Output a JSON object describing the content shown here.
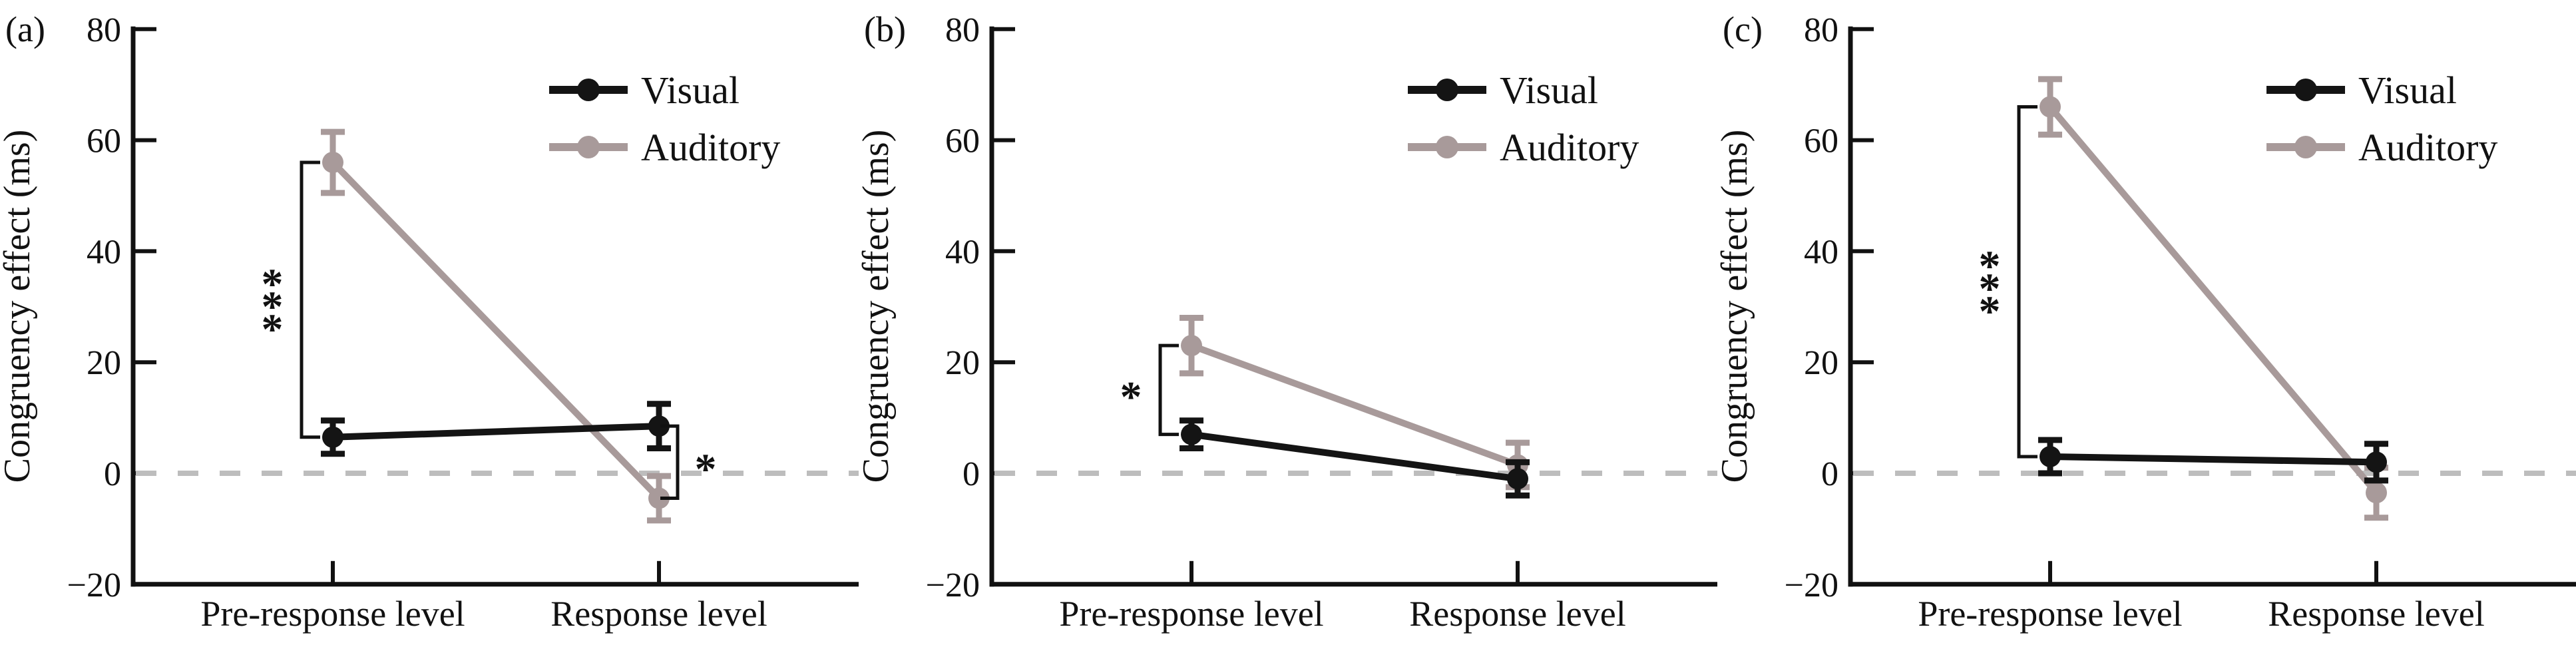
{
  "figure_title": "",
  "colors": {
    "visual": "#141414",
    "auditory": "#a89a9a",
    "zero_line": "#bdbdbd",
    "axis": "#111111",
    "background": "#ffffff"
  },
  "legend": {
    "items": [
      {
        "label": "Visual",
        "marker": "filled-circle-on-line",
        "color_key": "visual"
      },
      {
        "label": "Auditory",
        "marker": "filled-circle-on-line",
        "color_key": "auditory"
      }
    ],
    "position": "upper right"
  },
  "y_axis": {
    "title": "Congruency effect (ms)",
    "ticks": [
      80,
      60,
      40,
      20,
      0,
      -20
    ],
    "range": [
      -20,
      80
    ]
  },
  "x_axis": {
    "categories": [
      "Pre-response level",
      "Response level"
    ]
  },
  "chart_data": [
    {
      "type": "line",
      "panel_label": "(a)",
      "categories": [
        "Pre-response level",
        "Response level"
      ],
      "series": [
        {
          "name": "Visual",
          "values": [
            6.5,
            8.5
          ],
          "errors": [
            3,
            4
          ],
          "color": "#141414"
        },
        {
          "name": "Auditory",
          "values": [
            56,
            -4.5
          ],
          "errors": [
            5.5,
            4
          ],
          "color": "#a89a9a"
        }
      ],
      "ylabel": "Congruency effect (ms)",
      "ylim": [
        -20,
        80
      ],
      "yticks": [
        80,
        60,
        40,
        20,
        0,
        -20
      ],
      "zero_reference_line": true,
      "grid": false,
      "legend_position": "upper right",
      "significance": [
        {
          "stars": "***",
          "category": "Pre-response level",
          "between": [
            "Auditory",
            "Visual"
          ],
          "bracket_side": "open-right",
          "stars_side": "left"
        },
        {
          "stars": "*",
          "category": "Response level",
          "between": [
            "Visual",
            "Auditory"
          ],
          "bracket_side": "open-left",
          "stars_side": "right"
        }
      ]
    },
    {
      "type": "line",
      "panel_label": "(b)",
      "categories": [
        "Pre-response level",
        "Response level"
      ],
      "series": [
        {
          "name": "Visual",
          "values": [
            7,
            -1
          ],
          "errors": [
            2.5,
            3
          ],
          "color": "#141414"
        },
        {
          "name": "Auditory",
          "values": [
            23,
            1.5
          ],
          "errors": [
            5,
            4
          ],
          "color": "#a89a9a"
        }
      ],
      "ylabel": "Congruency effect (ms)",
      "ylim": [
        -20,
        80
      ],
      "yticks": [
        80,
        60,
        40,
        20,
        0,
        -20
      ],
      "zero_reference_line": true,
      "grid": false,
      "legend_position": "upper right",
      "significance": [
        {
          "stars": "*",
          "category": "Pre-response level",
          "between": [
            "Auditory",
            "Visual"
          ],
          "bracket_side": "open-right",
          "stars_side": "left"
        }
      ]
    },
    {
      "type": "line",
      "panel_label": "(c)",
      "categories": [
        "Pre-response level",
        "Response level"
      ],
      "series": [
        {
          "name": "Visual",
          "values": [
            3,
            2
          ],
          "errors": [
            3,
            3.3
          ],
          "color": "#141414"
        },
        {
          "name": "Auditory",
          "values": [
            66,
            -3.5
          ],
          "errors": [
            5,
            4.5
          ],
          "color": "#a89a9a"
        }
      ],
      "ylabel": "Congruency effect (ms)",
      "ylim": [
        -20,
        80
      ],
      "yticks": [
        80,
        60,
        40,
        20,
        0,
        -20
      ],
      "zero_reference_line": true,
      "grid": false,
      "legend_position": "upper right",
      "significance": [
        {
          "stars": "***",
          "category": "Pre-response level",
          "between": [
            "Auditory",
            "Visual"
          ],
          "bracket_side": "open-right",
          "stars_side": "left"
        }
      ]
    }
  ]
}
